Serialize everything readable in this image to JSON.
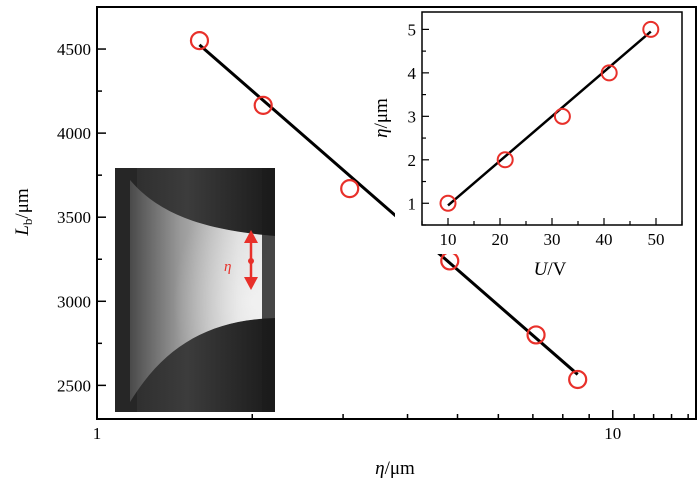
{
  "chart_data": [
    {
      "type": "scatter",
      "name": "main",
      "xlabel": {
        "var": "η",
        "unit": "/μm"
      },
      "ylabel": {
        "var": "L",
        "sub": "b",
        "unit": "/μm"
      },
      "x_scale": "log",
      "xlim": [
        1,
        14.5
      ],
      "ylim": [
        2300,
        4750
      ],
      "x_ticks": [
        1,
        10
      ],
      "x_tick_labels": [
        "1",
        "10"
      ],
      "y_ticks": [
        2500,
        3000,
        3500,
        4000,
        4500
      ],
      "y_tick_labels": [
        "2500",
        "3000",
        "3500",
        "4000",
        "4500"
      ],
      "points": [
        {
          "x": 1.58,
          "y": 4550
        },
        {
          "x": 2.1,
          "y": 4165
        },
        {
          "x": 3.09,
          "y": 3670
        },
        {
          "x": 4.83,
          "y": 3240
        },
        {
          "x": 7.1,
          "y": 2800
        },
        {
          "x": 8.55,
          "y": 2535
        }
      ],
      "fit_line": {
        "x": [
          1.58,
          8.55
        ],
        "y": [
          4525,
          2565
        ]
      },
      "marker_color": "#e8302a",
      "line_color": "#000000",
      "grid": false,
      "image_annotation": {
        "label": "η",
        "label_color": "#e8302a"
      }
    },
    {
      "type": "scatter",
      "name": "inset",
      "xlabel": {
        "var": "U",
        "unit": "/V"
      },
      "ylabel": {
        "var": "η",
        "unit": "/μm"
      },
      "xlim": [
        5,
        55
      ],
      "ylim": [
        0.5,
        5.4
      ],
      "x_ticks": [
        10,
        20,
        30,
        40,
        50
      ],
      "x_tick_labels": [
        "10",
        "20",
        "30",
        "40",
        "50"
      ],
      "y_ticks": [
        1,
        2,
        3,
        4,
        5
      ],
      "y_tick_labels": [
        "1",
        "2",
        "3",
        "4",
        "5"
      ],
      "points": [
        {
          "x": 10,
          "y": 1.0
        },
        {
          "x": 21,
          "y": 2.0
        },
        {
          "x": 32,
          "y": 3.0
        },
        {
          "x": 41,
          "y": 4.0
        },
        {
          "x": 49,
          "y": 5.0
        }
      ],
      "fit_line": {
        "x": [
          10,
          49
        ],
        "y": [
          0.95,
          4.95
        ]
      },
      "marker_color": "#e8302a",
      "line_color": "#000000",
      "grid": false
    }
  ]
}
